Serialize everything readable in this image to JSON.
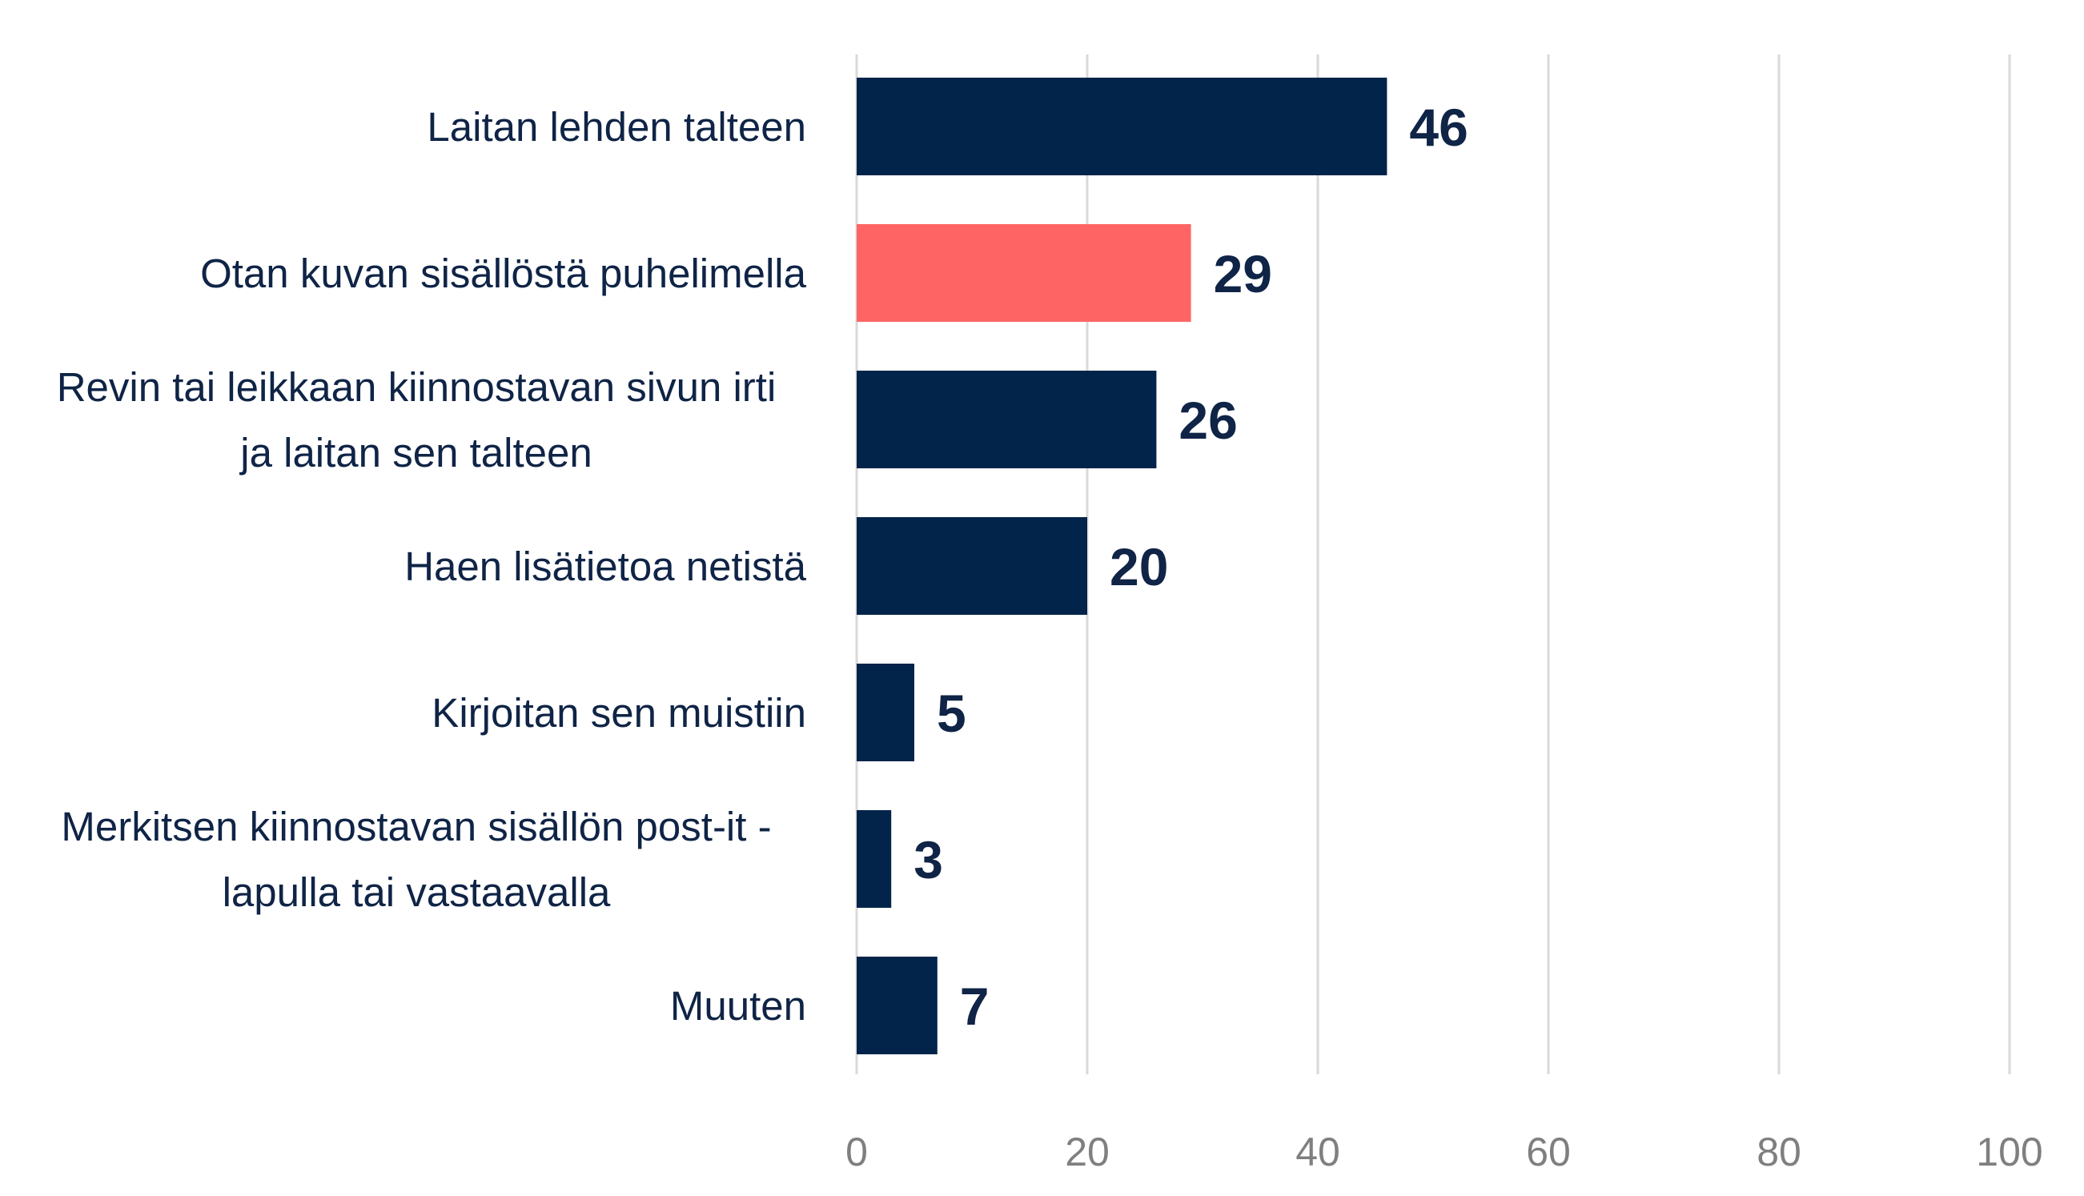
{
  "chart_data": {
    "type": "bar",
    "orientation": "horizontal",
    "categories": [
      "Laitan lehden talteen",
      "Otan kuvan sisällöstä puhelimella",
      "Revin tai leikkaan kiinnostavan sivun irti ja laitan sen talteen",
      "Haen lisätietoa netistä",
      "Kirjoitan sen muistiin",
      "Merkitsen kiinnostavan sisällön post-it -lapulla tai vastaavalla",
      "Muuten"
    ],
    "category_label_lines": [
      [
        "Laitan lehden talteen"
      ],
      [
        "Otan kuvan sisällöstä puhelimella"
      ],
      [
        "Revin tai leikkaan kiinnostavan sivun irti",
        "ja laitan sen talteen"
      ],
      [
        "Haen lisätietoa netistä"
      ],
      [
        "Kirjoitan sen muistiin"
      ],
      [
        "Merkitsen kiinnostavan sisällön post-it -",
        "lapulla tai vastaavalla"
      ],
      [
        "Muuten"
      ]
    ],
    "values": [
      46,
      29,
      26,
      20,
      5,
      3,
      7
    ],
    "value_labels": [
      "46",
      "29",
      "26",
      "20",
      "5",
      "3",
      "7"
    ],
    "bar_colors": [
      "#03244a",
      "#ff6464",
      "#03244a",
      "#03244a",
      "#03244a",
      "#03244a",
      "#03244a"
    ],
    "xlim": [
      0,
      100
    ],
    "x_ticks": [
      0,
      20,
      40,
      60,
      80,
      100
    ],
    "x_tick_labels": [
      "0",
      "20",
      "40",
      "60",
      "80",
      "100"
    ],
    "grid": true,
    "legend": "none",
    "title": "",
    "xlabel": "",
    "ylabel": ""
  }
}
